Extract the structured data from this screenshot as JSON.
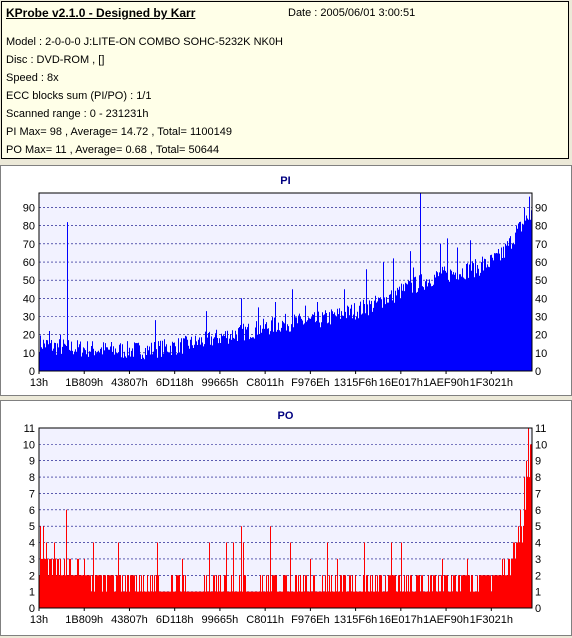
{
  "header": {
    "title": "KProbe v2.1.0 - Designed by Karr",
    "date": "Date : 2005/06/01 3:00:51",
    "lines": [
      "Model : 2-0-0-0 J:LITE-ON COMBO SOHC-5232K NK0H",
      "Disc : DVD-ROM ,  []",
      "Speed : 8x",
      "ECC blocks sum (PI/PO) : 1/1",
      "Scanned range : 0 - 231231h",
      "PI Max= 98 , Average= 14.72 , Total= 1100149",
      "PO Max= 11 , Average= 0.68 , Total= 50644"
    ]
  },
  "colors": {
    "pi": "#0000ff",
    "po": "#ff0000",
    "plot_bg": "#f2f2ff",
    "grid": "#000080"
  },
  "chart_data": [
    {
      "type": "bar",
      "title": "PI",
      "x_ticks": [
        "13h",
        "1B809h",
        "43807h",
        "6D118h",
        "99665h",
        "C8011h",
        "F976Eh",
        "1315F6h",
        "16E017h",
        "1AEF90h",
        "1F3021h"
      ],
      "ylim": [
        0,
        98
      ],
      "y_ticks": [
        0,
        10,
        20,
        30,
        40,
        50,
        60,
        70,
        80,
        90
      ],
      "profile": [
        [
          0,
          14
        ],
        [
          3,
          12
        ],
        [
          8,
          11
        ],
        [
          15,
          10
        ],
        [
          22,
          10
        ],
        [
          30,
          13
        ],
        [
          38,
          18
        ],
        [
          45,
          22
        ],
        [
          50,
          25
        ],
        [
          56,
          26
        ],
        [
          62,
          30
        ],
        [
          68,
          35
        ],
        [
          74,
          43
        ],
        [
          80,
          50
        ],
        [
          85,
          53
        ],
        [
          90,
          56
        ],
        [
          94,
          62
        ],
        [
          97,
          75
        ],
        [
          100,
          85
        ]
      ],
      "spikes": [
        [
          0.057,
          82
        ],
        [
          0.02,
          22
        ],
        [
          0.043,
          20
        ],
        [
          0.235,
          28
        ],
        [
          0.34,
          33
        ],
        [
          0.41,
          40
        ],
        [
          0.445,
          35
        ],
        [
          0.48,
          38
        ],
        [
          0.515,
          45
        ],
        [
          0.54,
          36
        ],
        [
          0.565,
          38
        ],
        [
          0.62,
          45
        ],
        [
          0.665,
          56
        ],
        [
          0.7,
          60
        ],
        [
          0.72,
          62
        ],
        [
          0.755,
          66
        ],
        [
          0.76,
          57
        ],
        [
          0.775,
          98
        ],
        [
          0.815,
          70
        ],
        [
          0.83,
          73
        ],
        [
          0.85,
          68
        ],
        [
          0.875,
          72
        ],
        [
          0.9,
          63
        ],
        [
          0.94,
          68
        ],
        [
          0.97,
          80
        ],
        [
          0.985,
          90
        ],
        [
          0.995,
          96
        ]
      ],
      "noise": 10,
      "seed": 7
    },
    {
      "type": "bar",
      "title": "PO",
      "x_ticks": [
        "13h",
        "1B809h",
        "43807h",
        "6D118h",
        "99665h",
        "C8011h",
        "F976Eh",
        "1315F6h",
        "16E017h",
        "1AEF90h",
        "1F3021h"
      ],
      "ylim": [
        0,
        11
      ],
      "y_ticks": [
        0,
        1,
        2,
        3,
        4,
        5,
        6,
        7,
        8,
        9,
        10,
        11
      ],
      "profile": [
        [
          0,
          2.4
        ],
        [
          5,
          2
        ],
        [
          10,
          1.7
        ],
        [
          20,
          1.3
        ],
        [
          30,
          1.1
        ],
        [
          40,
          1
        ],
        [
          50,
          1
        ],
        [
          60,
          1.1
        ],
        [
          70,
          1.2
        ],
        [
          80,
          1.3
        ],
        [
          90,
          1.4
        ],
        [
          95,
          2
        ],
        [
          98,
          4.5
        ],
        [
          100,
          9
        ]
      ],
      "spikes": [
        [
          0.003,
          5
        ],
        [
          0.008,
          5
        ],
        [
          0.015,
          4
        ],
        [
          0.03,
          4
        ],
        [
          0.055,
          6
        ],
        [
          0.08,
          3
        ],
        [
          0.11,
          4
        ],
        [
          0.16,
          4
        ],
        [
          0.24,
          4
        ],
        [
          0.29,
          3
        ],
        [
          0.345,
          4
        ],
        [
          0.38,
          4
        ],
        [
          0.395,
          4
        ],
        [
          0.41,
          5
        ],
        [
          0.415,
          4
        ],
        [
          0.47,
          5
        ],
        [
          0.51,
          4
        ],
        [
          0.55,
          3
        ],
        [
          0.585,
          4
        ],
        [
          0.605,
          3
        ],
        [
          0.66,
          4
        ],
        [
          0.715,
          4
        ],
        [
          0.735,
          4
        ],
        [
          0.82,
          3
        ],
        [
          0.87,
          3
        ],
        [
          0.96,
          3
        ],
        [
          0.973,
          5
        ],
        [
          0.978,
          6
        ],
        [
          0.985,
          8
        ],
        [
          0.99,
          9
        ],
        [
          0.993,
          11
        ],
        [
          0.997,
          10
        ]
      ],
      "noise": 1.3,
      "seed": 13
    }
  ]
}
